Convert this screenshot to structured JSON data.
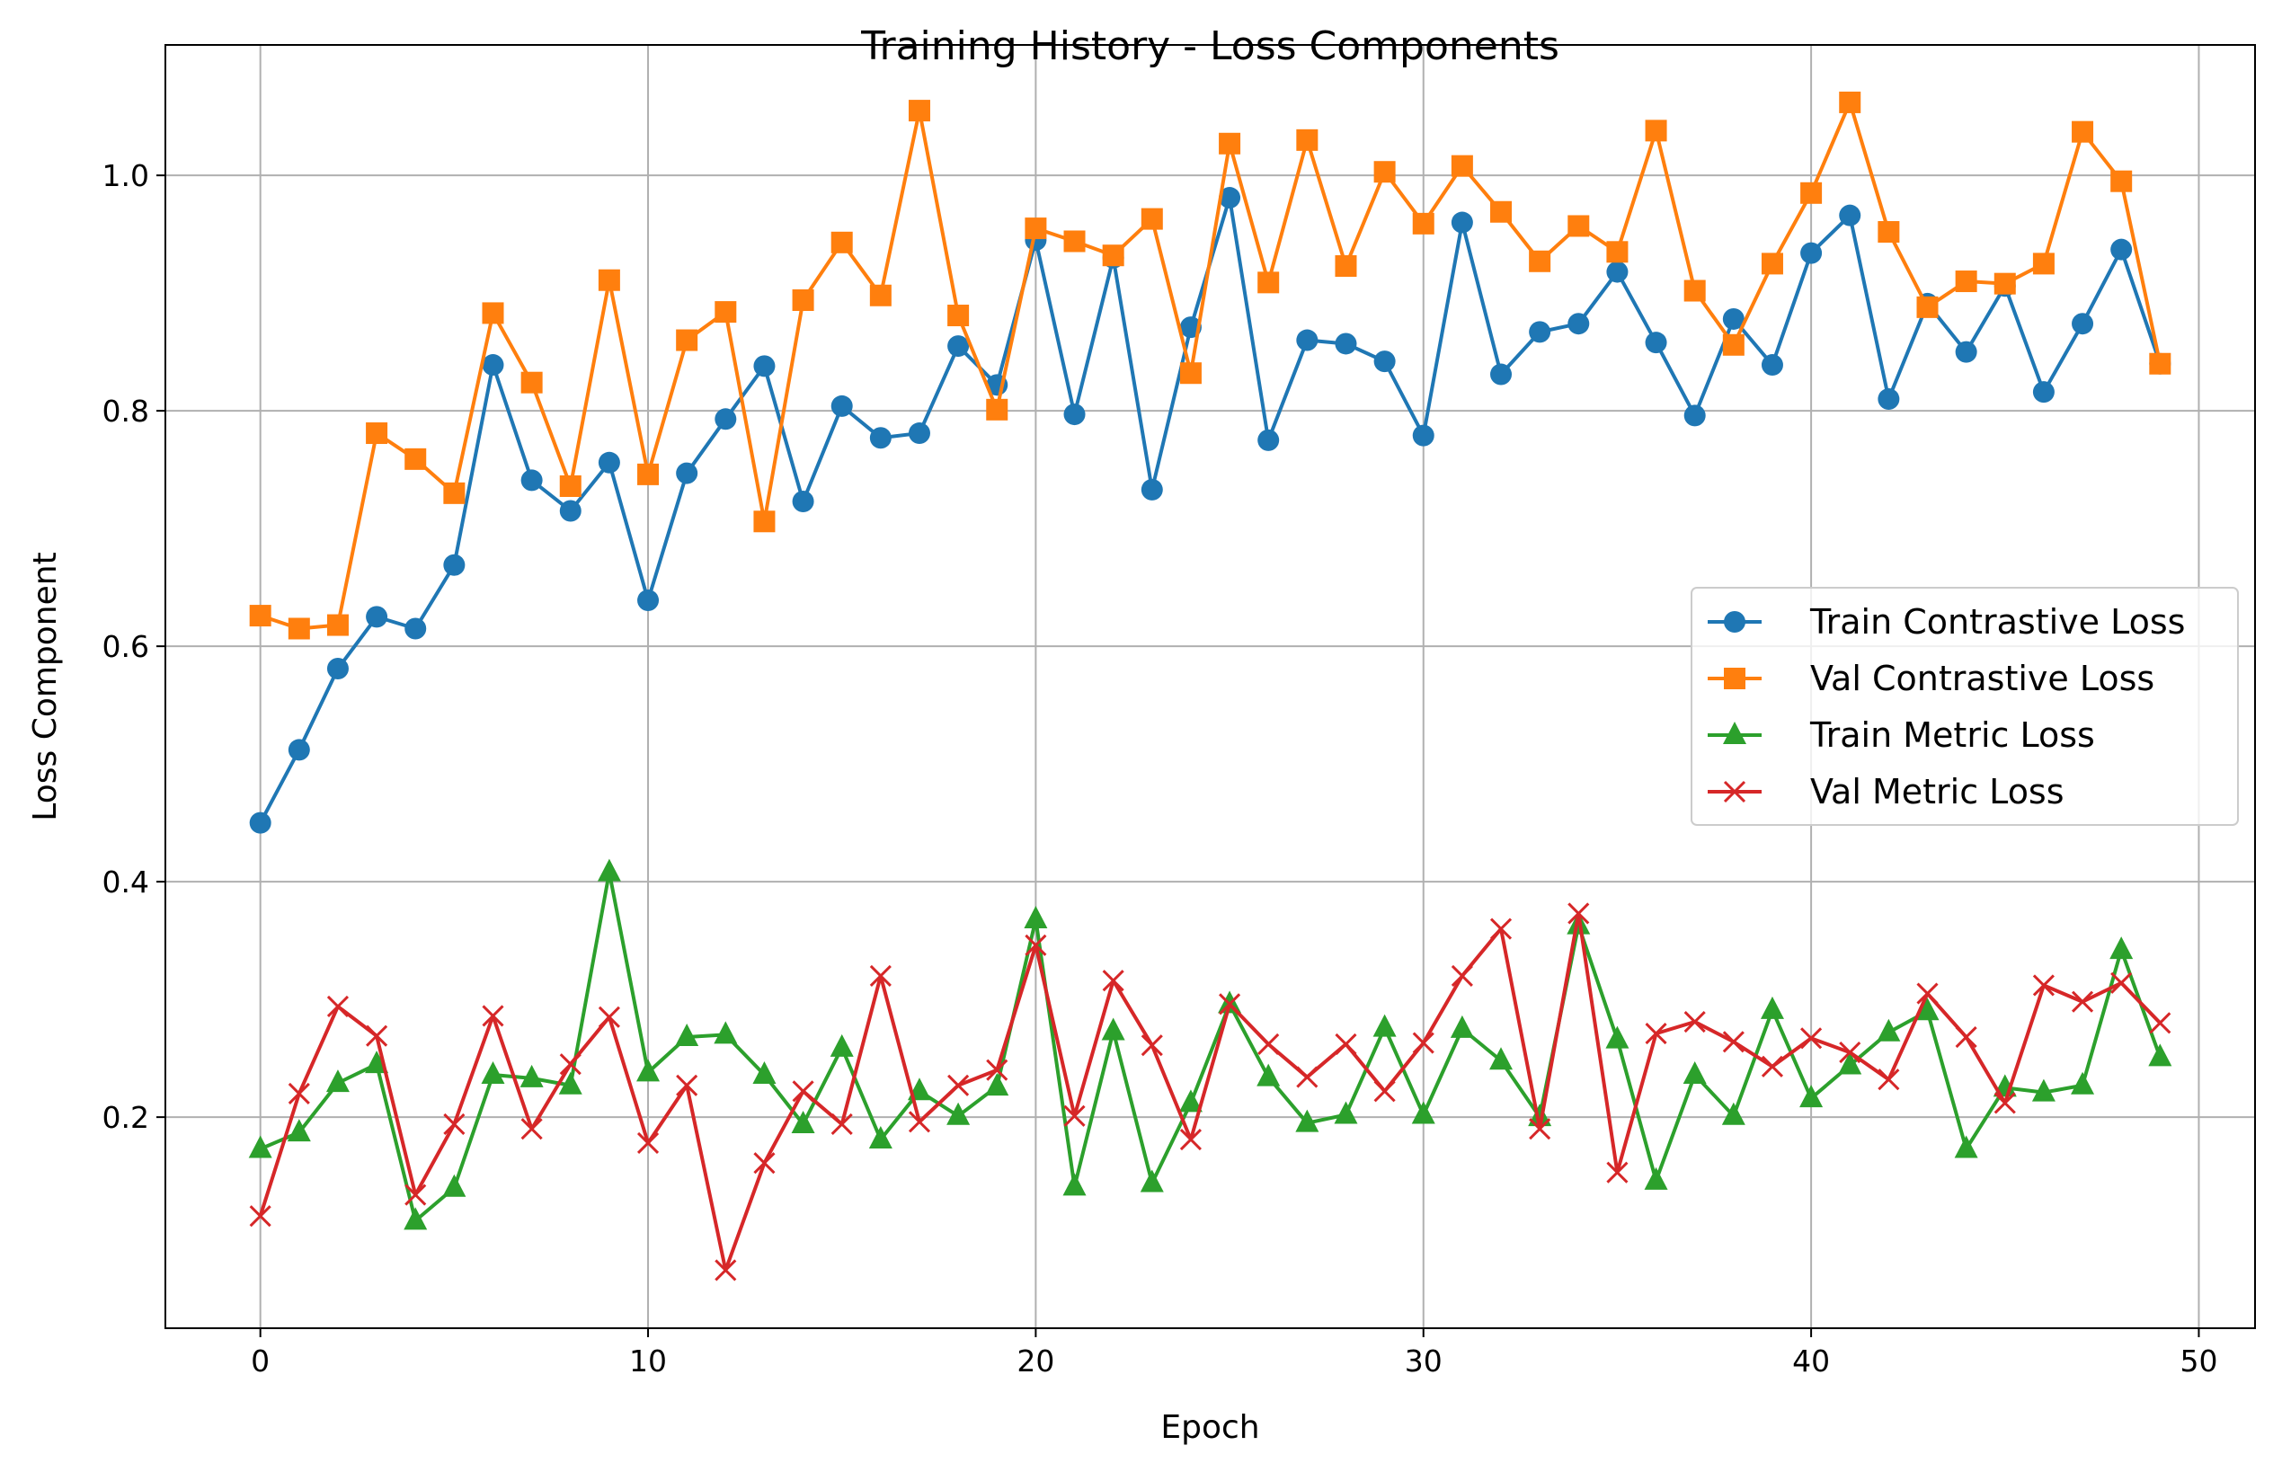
{
  "chart_data": {
    "type": "line",
    "title": "Training History - Loss Components",
    "xlabel": "Epoch",
    "ylabel": "Loss Component",
    "xlim": [
      -2.45,
      51.45
    ],
    "ylim": [
      0.0207,
      1.1108
    ],
    "xticks": [
      0,
      10,
      20,
      30,
      40,
      50
    ],
    "yticks": [
      0.2,
      0.4,
      0.6,
      0.8,
      1.0
    ],
    "xtick_labels": [
      "0",
      "10",
      "20",
      "30",
      "40",
      "50"
    ],
    "ytick_labels": [
      "0.2",
      "0.4",
      "0.6",
      "0.8",
      "1.0"
    ],
    "grid": true,
    "legend_position": "center-right",
    "x": [
      0,
      1,
      2,
      3,
      4,
      5,
      6,
      7,
      8,
      9,
      10,
      11,
      12,
      13,
      14,
      15,
      16,
      17,
      18,
      19,
      20,
      21,
      22,
      23,
      24,
      25,
      26,
      27,
      28,
      29,
      30,
      31,
      32,
      33,
      34,
      35,
      36,
      37,
      38,
      39,
      40,
      41,
      42,
      43,
      44,
      45,
      46,
      47,
      48,
      49
    ],
    "series": [
      {
        "name": "Train Contrastive Loss",
        "color": "#1f77b4",
        "marker": "circle",
        "values": [
          0.45,
          0.512,
          0.581,
          0.625,
          0.615,
          0.669,
          0.839,
          0.741,
          0.715,
          0.756,
          0.639,
          0.747,
          0.793,
          0.838,
          0.723,
          0.804,
          0.777,
          0.781,
          0.855,
          0.822,
          0.945,
          0.797,
          0.93,
          0.733,
          0.871,
          0.981,
          0.775,
          0.86,
          0.857,
          0.842,
          0.779,
          0.96,
          0.831,
          0.867,
          0.874,
          0.918,
          0.858,
          0.796,
          0.878,
          0.839,
          0.934,
          0.966,
          0.81,
          0.891,
          0.85,
          0.906,
          0.816,
          0.874,
          0.937,
          0.84
        ]
      },
      {
        "name": "Val Contrastive Loss",
        "color": "#ff7f0e",
        "marker": "square",
        "values": [
          0.626,
          0.615,
          0.618,
          0.781,
          0.759,
          0.73,
          0.883,
          0.824,
          0.736,
          0.911,
          0.746,
          0.86,
          0.884,
          0.706,
          0.894,
          0.943,
          0.898,
          1.055,
          0.881,
          0.801,
          0.955,
          0.944,
          0.932,
          0.963,
          0.832,
          1.027,
          0.909,
          1.03,
          0.923,
          1.003,
          0.959,
          1.008,
          0.969,
          0.927,
          0.957,
          0.935,
          1.038,
          0.902,
          0.856,
          0.925,
          0.985,
          1.062,
          0.952,
          0.888,
          0.91,
          0.908,
          0.925,
          1.037,
          0.995,
          0.84
        ]
      },
      {
        "name": "Train Metric Loss",
        "color": "#2ca02c",
        "marker": "triangle",
        "values": [
          0.173,
          0.187,
          0.229,
          0.245,
          0.112,
          0.14,
          0.236,
          0.233,
          0.227,
          0.408,
          0.238,
          0.268,
          0.27,
          0.236,
          0.194,
          0.259,
          0.181,
          0.222,
          0.201,
          0.226,
          0.368,
          0.141,
          0.273,
          0.144,
          0.212,
          0.296,
          0.234,
          0.195,
          0.202,
          0.276,
          0.202,
          0.275,
          0.248,
          0.2,
          0.363,
          0.266,
          0.146,
          0.236,
          0.201,
          0.291,
          0.216,
          0.244,
          0.272,
          0.29,
          0.173,
          0.225,
          0.221,
          0.227,
          0.342,
          0.251
        ]
      },
      {
        "name": "Val Metric Loss",
        "color": "#d62728",
        "marker": "x",
        "values": [
          0.116,
          0.22,
          0.294,
          0.269,
          0.134,
          0.194,
          0.286,
          0.19,
          0.245,
          0.285,
          0.178,
          0.227,
          0.07,
          0.161,
          0.222,
          0.194,
          0.32,
          0.196,
          0.227,
          0.24,
          0.346,
          0.201,
          0.316,
          0.261,
          0.181,
          0.296,
          0.262,
          0.234,
          0.262,
          0.222,
          0.263,
          0.32,
          0.36,
          0.19,
          0.373,
          0.153,
          0.271,
          0.281,
          0.264,
          0.243,
          0.267,
          0.255,
          0.232,
          0.305,
          0.268,
          0.212,
          0.312,
          0.298,
          0.314,
          0.28
        ]
      }
    ]
  }
}
